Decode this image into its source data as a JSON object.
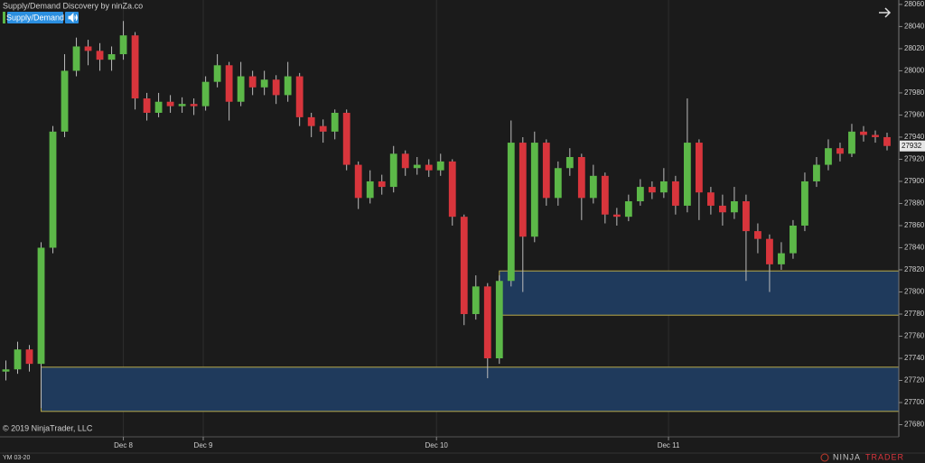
{
  "chart_data": {
    "type": "candlestick",
    "title": "Supply/Demand Discovery by ninZa.co",
    "button_label": "Supply/Demand",
    "copyright": "© 2019 NinjaTrader, LLC",
    "instrument": "YM 03-20",
    "logo": [
      "NINJA",
      "TRADER"
    ],
    "up_color": "#5cb848",
    "down_color": "#d8353c",
    "open": [
      27728,
      27730,
      27748,
      27735,
      27840,
      27945,
      28000,
      28022,
      28018,
      28010,
      28015,
      28032,
      27975,
      27962,
      27972,
      27968,
      27970,
      27968,
      27990,
      28005,
      27972,
      27995,
      27985,
      27992,
      27978,
      27995,
      27958,
      27950,
      27945,
      27962,
      27915,
      27885,
      27900,
      27895,
      27925,
      27912,
      27915,
      27910,
      27918,
      27868,
      27780,
      27805,
      27740,
      27810,
      27935,
      27850,
      27935,
      27885,
      27912,
      27922,
      27885,
      27905,
      27870,
      27868,
      27882,
      27895,
      27890,
      27900,
      27878,
      27935,
      27890,
      27878,
      27872,
      27882,
      27855,
      27848,
      27825,
      27835,
      27860,
      27900,
      27915,
      27930,
      27925,
      27945,
      27942,
      27940
    ],
    "high": [
      27738,
      27755,
      27752,
      27845,
      27950,
      28015,
      28030,
      28028,
      28025,
      28022,
      28045,
      28035,
      27980,
      27980,
      27978,
      27976,
      27975,
      27995,
      28015,
      28008,
      28008,
      28000,
      28000,
      27996,
      28008,
      27998,
      27962,
      27956,
      27965,
      27965,
      27918,
      27910,
      27906,
      27932,
      27928,
      27922,
      27920,
      27925,
      27920,
      27870,
      27815,
      27808,
      27815,
      27955,
      27940,
      27945,
      27938,
      27918,
      27930,
      27925,
      27915,
      27908,
      27876,
      27888,
      27902,
      27900,
      27912,
      27905,
      27975,
      27938,
      27895,
      27888,
      27895,
      27888,
      27862,
      27852,
      27845,
      27865,
      27908,
      27922,
      27938,
      27935,
      27952,
      27950,
      27946,
      27944
    ],
    "low": [
      27720,
      27726,
      27728,
      27695,
      27835,
      27940,
      27995,
      28005,
      28000,
      28000,
      28010,
      27965,
      27955,
      27958,
      27962,
      27962,
      27960,
      27964,
      27985,
      27955,
      27968,
      27978,
      27978,
      27970,
      27972,
      27950,
      27940,
      27935,
      27938,
      27910,
      27875,
      27880,
      27888,
      27890,
      27905,
      27906,
      27904,
      27905,
      27860,
      27770,
      27775,
      27722,
      27735,
      27805,
      27800,
      27845,
      27878,
      27878,
      27905,
      27865,
      27880,
      27862,
      27860,
      27864,
      27878,
      27884,
      27885,
      27870,
      27872,
      27865,
      27870,
      27860,
      27866,
      27810,
      27835,
      27800,
      27820,
      27830,
      27855,
      27895,
      27910,
      27918,
      27922,
      27936,
      27935,
      27928
    ],
    "close": [
      27730,
      27748,
      27735,
      27840,
      27945,
      28000,
      28022,
      28018,
      28010,
      28015,
      28032,
      27975,
      27962,
      27972,
      27968,
      27970,
      27968,
      27990,
      28005,
      27972,
      27995,
      27985,
      27992,
      27978,
      27995,
      27958,
      27950,
      27945,
      27962,
      27915,
      27885,
      27900,
      27895,
      27925,
      27912,
      27915,
      27910,
      27918,
      27868,
      27780,
      27805,
      27740,
      27810,
      27935,
      27850,
      27935,
      27885,
      27912,
      27922,
      27885,
      27905,
      27870,
      27868,
      27882,
      27895,
      27890,
      27900,
      27878,
      27935,
      27890,
      27878,
      27872,
      27882,
      27855,
      27848,
      27825,
      27835,
      27860,
      27900,
      27915,
      27930,
      27925,
      27945,
      27942,
      27940,
      27932
    ],
    "zones": [
      {
        "start": 42,
        "low": 27779,
        "high": 27819
      },
      {
        "start": 3,
        "low": 27692,
        "high": 27732
      }
    ],
    "zone_color": "#1f3a5c",
    "zone_border": "#b8a94a",
    "xlim": [
      -0.5,
      76
    ],
    "xticks": [
      {
        "value": 10,
        "label": "Dec 8"
      },
      {
        "value": 16.8,
        "label": "Dec 9"
      },
      {
        "value": 36.65,
        "label": "Dec 10"
      },
      {
        "value": 56.4,
        "label": "Dec 11"
      }
    ],
    "ylim": [
      27669,
      28064
    ],
    "yticks": [
      27680,
      27700,
      27720,
      27740,
      27760,
      27780,
      27800,
      27820,
      27840,
      27860,
      27880,
      27900,
      27920,
      27940,
      27960,
      27980,
      28000,
      28020,
      28040,
      28060
    ],
    "grid": true
  }
}
